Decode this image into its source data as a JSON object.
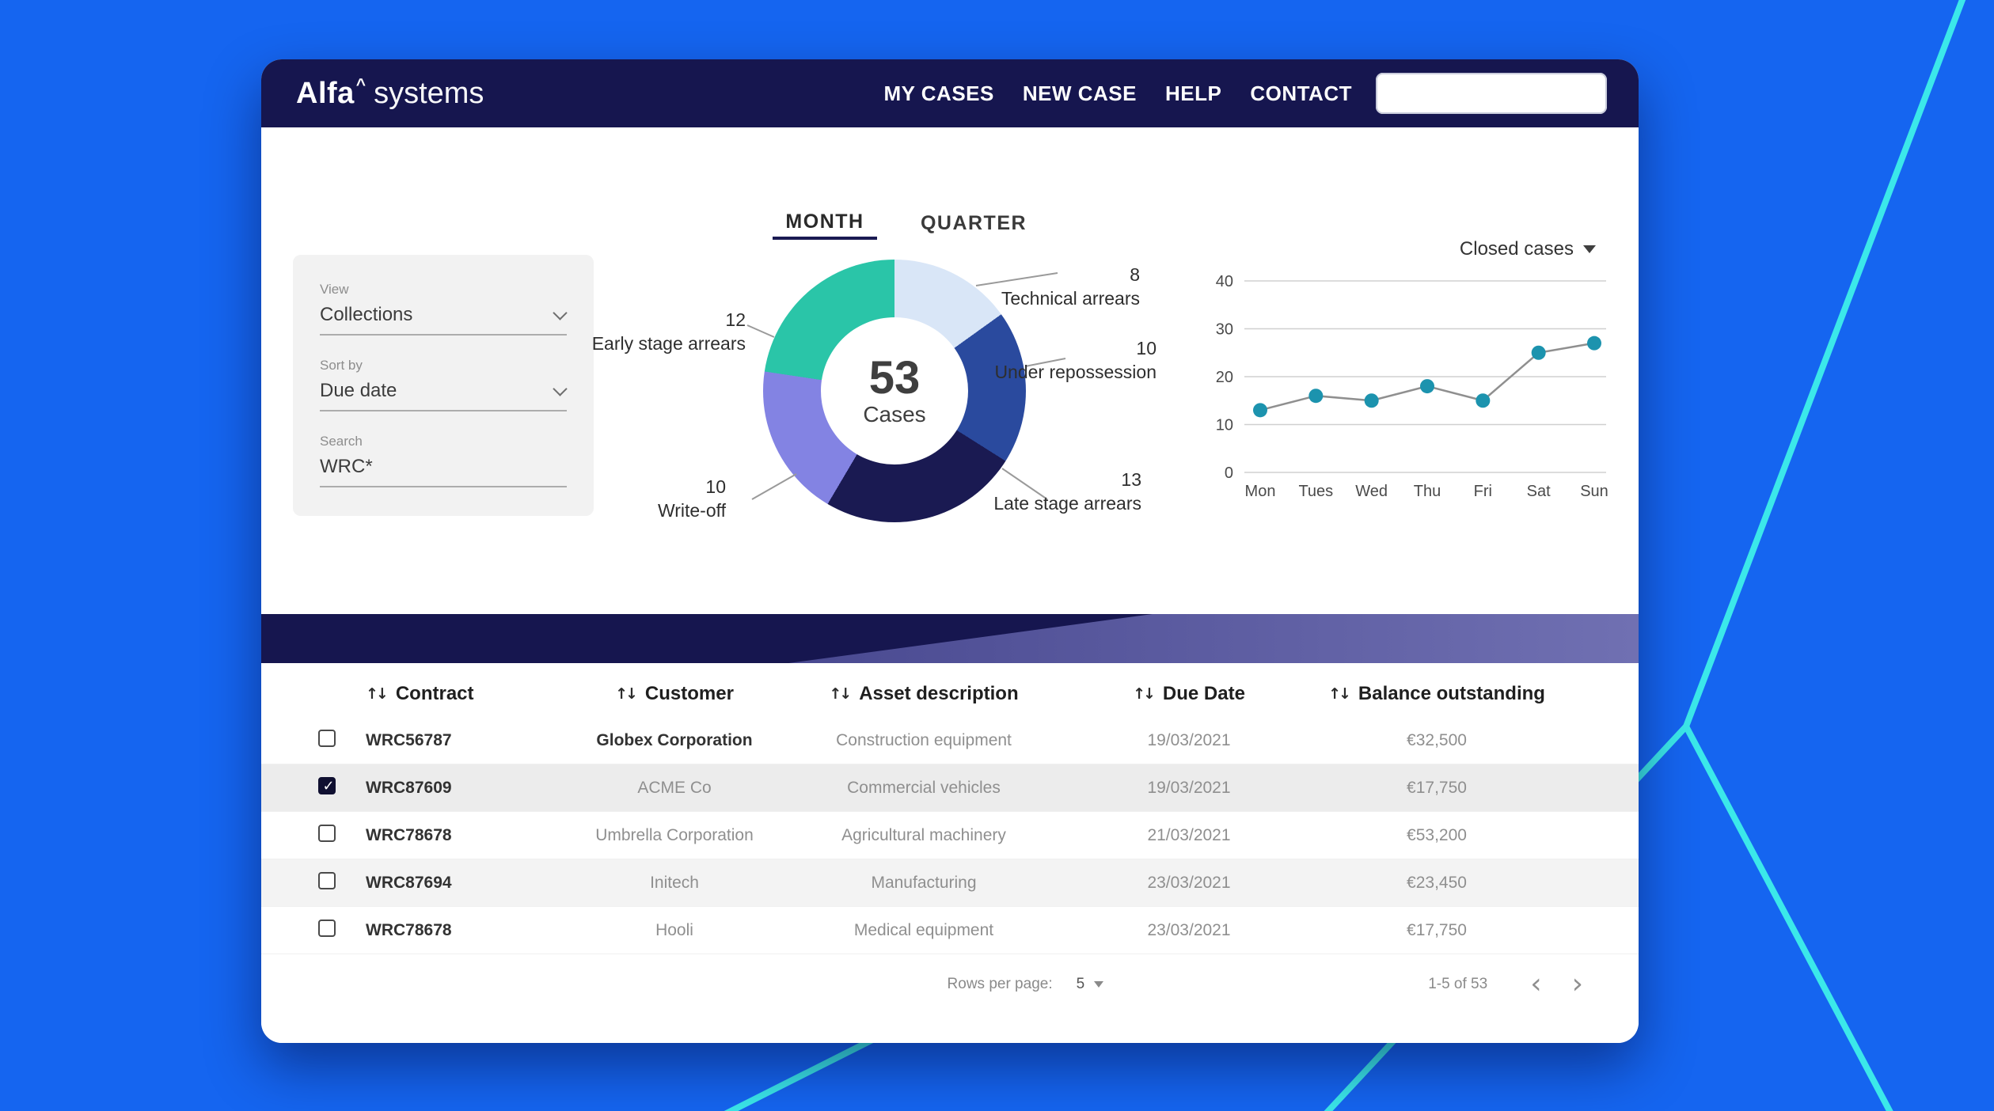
{
  "nav": {
    "logo_primary": "Alfa",
    "logo_caret": "^",
    "logo_secondary": "systems",
    "items": [
      {
        "label": "MY CASES"
      },
      {
        "label": "NEW CASE"
      },
      {
        "label": "HELP"
      },
      {
        "label": "CONTACT"
      }
    ],
    "search_value": ""
  },
  "view_tabs": [
    {
      "label": "MONTH",
      "active": true
    },
    {
      "label": "QUARTER",
      "active": false
    }
  ],
  "filters": {
    "view_label": "View",
    "view_value": "Collections",
    "sort_label": "Sort by",
    "sort_value": "Due date",
    "search_label": "Search",
    "search_value": "WRC*"
  },
  "chart_data": [
    {
      "type": "pie",
      "donut": true,
      "center_value": "53",
      "center_label": "Cases",
      "total": 53,
      "slices": [
        {
          "label": "Technical arrears",
          "value": 8,
          "color": "#D9E6F7"
        },
        {
          "label": "Under repossession",
          "value": 10,
          "color": "#2A4A9E"
        },
        {
          "label": "Late stage arrears",
          "value": 13,
          "color": "#1A1A52"
        },
        {
          "label": "Write-off",
          "value": 10,
          "color": "#8383E3"
        },
        {
          "label": "Early stage arrears",
          "value": 12,
          "color": "#2AC5A8"
        }
      ]
    },
    {
      "type": "line",
      "title": "Closed cases",
      "categories": [
        "Mon",
        "Tues",
        "Wed",
        "Thu",
        "Fri",
        "Sat",
        "Sun"
      ],
      "values": [
        13,
        16,
        15,
        18,
        15,
        25,
        27
      ],
      "ylim": [
        0,
        40
      ],
      "yticks": [
        0,
        10,
        20,
        30,
        40
      ],
      "grid": true,
      "legend": "none",
      "point_color": "#1C93AE",
      "line_color": "#8F8F8F",
      "grid_color": "#D0D0D0"
    }
  ],
  "table": {
    "sort_icon": "↑↓",
    "columns": [
      "Contract",
      "Customer",
      "Asset description",
      "Due Date",
      "Balance outstanding"
    ],
    "rows": [
      {
        "checked": false,
        "contract": "WRC56787",
        "customer": "Globex Corporation",
        "customer_strong": true,
        "asset": "Construction equipment",
        "due_date": "19/03/2021",
        "balance": "€32,500"
      },
      {
        "checked": true,
        "contract": "WRC87609",
        "customer": "ACME Co",
        "customer_strong": false,
        "asset": "Commercial vehicles",
        "due_date": "19/03/2021",
        "balance": "€17,750"
      },
      {
        "checked": false,
        "contract": "WRC78678",
        "customer": "Umbrella Corporation",
        "customer_strong": false,
        "asset": "Agricultural machinery",
        "due_date": "21/03/2021",
        "balance": "€53,200"
      },
      {
        "checked": false,
        "contract": "WRC87694",
        "customer": "Initech",
        "customer_strong": false,
        "asset": "Manufacturing",
        "due_date": "23/03/2021",
        "balance": "€23,450"
      },
      {
        "checked": false,
        "contract": "WRC78678",
        "customer": "Hooli",
        "customer_strong": false,
        "asset": "Medical equipment",
        "due_date": "23/03/2021",
        "balance": "€17,750"
      }
    ],
    "pagination": {
      "rows_per_page_label": "Rows per page:",
      "rows_per_page_value": "5",
      "range": "1-5 of 53",
      "prev_icon": "‹",
      "next_icon": "›"
    }
  },
  "colors": {
    "page_background": "#1565F0",
    "decor_line": "#3BE8EA",
    "navbar": "#16164F",
    "tab_underline": "#1A1A52",
    "selected_row": "#ECECEC"
  }
}
